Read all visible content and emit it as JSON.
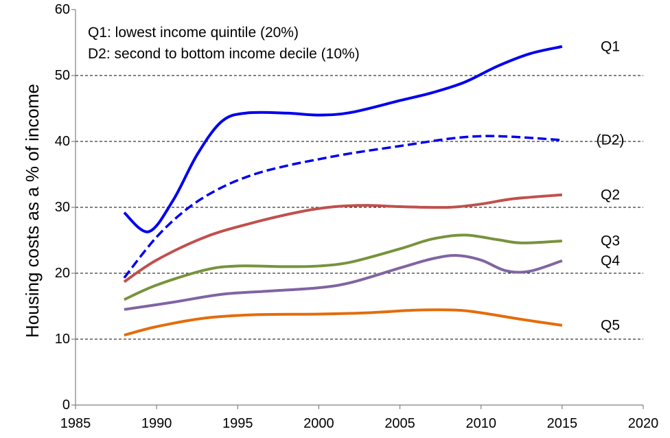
{
  "chart_data": {
    "type": "line",
    "ylabel": "Housing costs as a % of income",
    "xlabel": "",
    "xlim": [
      1985,
      2020
    ],
    "ylim": [
      0,
      60
    ],
    "xticks": [
      1985,
      1990,
      1995,
      2000,
      2005,
      2010,
      2015,
      2020
    ],
    "yticks": [
      0,
      10,
      20,
      30,
      40,
      50,
      60
    ],
    "grid": "horizontal dashed",
    "annotations": [
      "Q1: lowest income quintile (20%)",
      "D2: second to bottom income decile (10%)"
    ],
    "series": [
      {
        "name": "Q1",
        "color": "#0000ee",
        "dash": "solid",
        "points": [
          [
            1988,
            29.2
          ],
          [
            1989.5,
            26.3
          ],
          [
            1991,
            31
          ],
          [
            1992.5,
            38
          ],
          [
            1994,
            43
          ],
          [
            1995.5,
            44.3
          ],
          [
            1998,
            44.3
          ],
          [
            2000,
            44
          ],
          [
            2002,
            44.4
          ],
          [
            2005,
            46.2
          ],
          [
            2007,
            47.4
          ],
          [
            2009,
            49
          ],
          [
            2011,
            51.4
          ],
          [
            2013,
            53.3
          ],
          [
            2015,
            54.4
          ]
        ]
      },
      {
        "name": "(D2)",
        "color": "#0000ee",
        "dash": "dashed",
        "points": [
          [
            1988,
            19.3
          ],
          [
            1990,
            25.5
          ],
          [
            1992,
            30
          ],
          [
            1994,
            33
          ],
          [
            1996,
            35
          ],
          [
            1998,
            36.3
          ],
          [
            2000,
            37.3
          ],
          [
            2002,
            38.2
          ],
          [
            2005,
            39.3
          ],
          [
            2008,
            40.4
          ],
          [
            2010,
            40.8
          ],
          [
            2012,
            40.7
          ],
          [
            2015,
            40.2
          ]
        ]
      },
      {
        "name": "Q2",
        "color": "#c0504d",
        "dash": "solid",
        "points": [
          [
            1988,
            18.7
          ],
          [
            1990,
            22
          ],
          [
            1993,
            25.5
          ],
          [
            1996,
            27.7
          ],
          [
            1999,
            29.4
          ],
          [
            2001,
            30.1
          ],
          [
            2003,
            30.3
          ],
          [
            2005,
            30.1
          ],
          [
            2008,
            30
          ],
          [
            2010,
            30.5
          ],
          [
            2012,
            31.3
          ],
          [
            2015,
            31.9
          ]
        ]
      },
      {
        "name": "Q3",
        "color": "#77933c",
        "dash": "solid",
        "points": [
          [
            1988,
            16
          ],
          [
            1990,
            18.2
          ],
          [
            1993,
            20.5
          ],
          [
            1995,
            21.1
          ],
          [
            1998,
            21
          ],
          [
            2000,
            21.1
          ],
          [
            2002,
            21.7
          ],
          [
            2005,
            23.7
          ],
          [
            2007,
            25.2
          ],
          [
            2009,
            25.8
          ],
          [
            2011,
            25.1
          ],
          [
            2012.5,
            24.6
          ],
          [
            2015,
            24.9
          ]
        ]
      },
      {
        "name": "Q4",
        "color": "#8064a2",
        "dash": "solid",
        "points": [
          [
            1988,
            14.5
          ],
          [
            1991,
            15.6
          ],
          [
            1994,
            16.8
          ],
          [
            1997,
            17.3
          ],
          [
            2000,
            17.8
          ],
          [
            2002,
            18.6
          ],
          [
            2005,
            20.8
          ],
          [
            2007,
            22.2
          ],
          [
            2008.5,
            22.7
          ],
          [
            2010,
            22
          ],
          [
            2011.5,
            20.4
          ],
          [
            2013,
            20.3
          ],
          [
            2015,
            21.9
          ]
        ]
      },
      {
        "name": "Q5",
        "color": "#e46c0a",
        "dash": "solid",
        "points": [
          [
            1988,
            10.6
          ],
          [
            1990,
            11.9
          ],
          [
            1993,
            13.2
          ],
          [
            1996,
            13.7
          ],
          [
            2000,
            13.8
          ],
          [
            2003,
            14
          ],
          [
            2006,
            14.4
          ],
          [
            2008.5,
            14.4
          ],
          [
            2010,
            14
          ],
          [
            2012.5,
            13
          ],
          [
            2015,
            12.1
          ]
        ]
      }
    ]
  }
}
